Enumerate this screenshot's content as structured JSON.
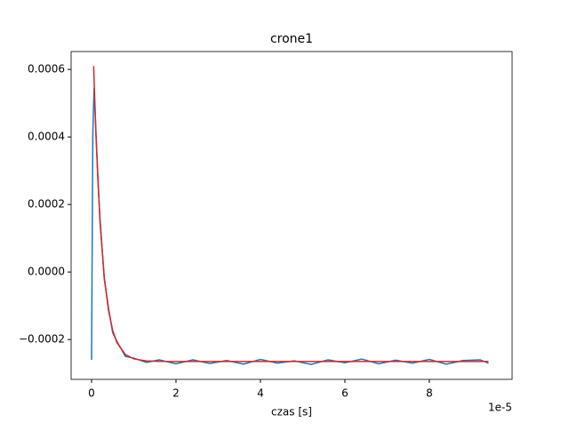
{
  "chart_data": {
    "type": "line",
    "title": "crone1",
    "x_label": "czas [s]",
    "x_offset_label": "1e-5",
    "xlim": [
      -4.84e-06,
      9.96e-05
    ],
    "xticks": [
      {
        "value": 0,
        "label": "0"
      },
      {
        "value": 2e-05,
        "label": "2"
      },
      {
        "value": 4e-05,
        "label": "4"
      },
      {
        "value": 6e-05,
        "label": "6"
      },
      {
        "value": 8e-05,
        "label": "8"
      }
    ],
    "ylim": [
      -0.000318,
      0.000653
    ],
    "yticks": [
      {
        "value": -0.0002,
        "label": "−0.0002"
      },
      {
        "value": 0,
        "label": "0.0000"
      },
      {
        "value": 0.0002,
        "label": "0.0002"
      },
      {
        "value": 0.0004,
        "label": "0.0004"
      },
      {
        "value": 0.0006,
        "label": "0.0006"
      }
    ],
    "series": [
      {
        "color": "#1f77b4",
        "x": [
          0,
          3e-07,
          6e-07,
          1e-06,
          1.5e-06,
          2e-06,
          3e-06,
          4e-06,
          5e-06,
          6e-06,
          8e-06,
          1e-05,
          1.3e-05,
          1.6e-05,
          2e-05,
          2.4e-05,
          2.8e-05,
          3.2e-05,
          3.6e-05,
          4e-05,
          4.4e-05,
          4.8e-05,
          5.2e-05,
          5.6e-05,
          6e-05,
          6.4e-05,
          6.8e-05,
          7.2e-05,
          7.6e-05,
          8e-05,
          8.4e-05,
          8.8e-05,
          9.2e-05,
          9.4e-05
        ],
        "values": [
          -0.00026,
          0.00041,
          0.000545,
          0.00043,
          0.00027,
          0.00016,
          -2e-05,
          -0.000105,
          -0.00018,
          -0.000205,
          -0.00025,
          -0.000255,
          -0.000268,
          -0.00026,
          -0.000272,
          -0.00026,
          -0.000271,
          -0.000262,
          -0.000273,
          -0.000259,
          -0.00027,
          -0.000263,
          -0.000274,
          -0.00026,
          -0.000269,
          -0.000258,
          -0.000272,
          -0.000261,
          -0.00027,
          -0.000259,
          -0.000273,
          -0.000262,
          -0.00026,
          -0.00027
        ]
      },
      {
        "color": "#d62728",
        "x": [
          5e-07,
          1e-06,
          2e-06,
          3e-06,
          4e-06,
          5e-06,
          6e-06,
          8e-06,
          1e-05,
          1.3e-05,
          1.6e-05,
          2e-05,
          3e-05,
          4e-05,
          6e-05,
          8e-05,
          9.4e-05
        ],
        "values": [
          0.00061,
          0.0004165,
          0.0001483,
          -1.43e-05,
          -0.0001129,
          -0.0001728,
          -0.0002091,
          -0.0002444,
          -0.0002573,
          -0.0002633,
          -0.0002646,
          -0.000265,
          -0.000265,
          -0.000265,
          -0.000265,
          -0.000265,
          -0.000265
        ]
      }
    ]
  }
}
